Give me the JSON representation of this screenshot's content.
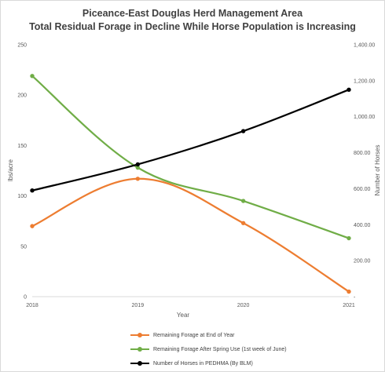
{
  "chart_data": {
    "type": "line",
    "title": "Piceance-East Douglas Herd Management Area",
    "subtitle": "Total Residual Forage in Decline While Horse Population is Increasing",
    "xlabel": "Year",
    "ylabel": "lbs/acre",
    "y2label": "Number of Horses",
    "categories": [
      "2018",
      "2019",
      "2020",
      "2021"
    ],
    "ylim": [
      0,
      250
    ],
    "y_ticks": [
      0,
      50,
      100,
      150,
      200,
      250
    ],
    "y2lim": [
      0,
      1400
    ],
    "y2_ticks": [
      0,
      200,
      400,
      600,
      800,
      1000,
      1200,
      1400
    ],
    "y2_tick_labels": [
      "-",
      "200.00",
      "400.00",
      "600.00",
      "800.00",
      "1,000.00",
      "1,200.00",
      "1,400.00"
    ],
    "grid": false,
    "legend_position": "bottom",
    "series": [
      {
        "name": "Remaining Forage at End of Year",
        "axis": "left",
        "color": "#ED7D31",
        "values": [
          70,
          117,
          73,
          5
        ]
      },
      {
        "name": "Remaining Forage After Spring Use (1st week of June)",
        "axis": "left",
        "color": "#70AD47",
        "values": [
          219,
          128,
          95,
          58
        ]
      },
      {
        "name": "Number of Horses in PEDHMA (By BLM)",
        "axis": "right",
        "color": "#000000",
        "values": [
          590,
          735,
          920,
          1150
        ]
      }
    ]
  }
}
